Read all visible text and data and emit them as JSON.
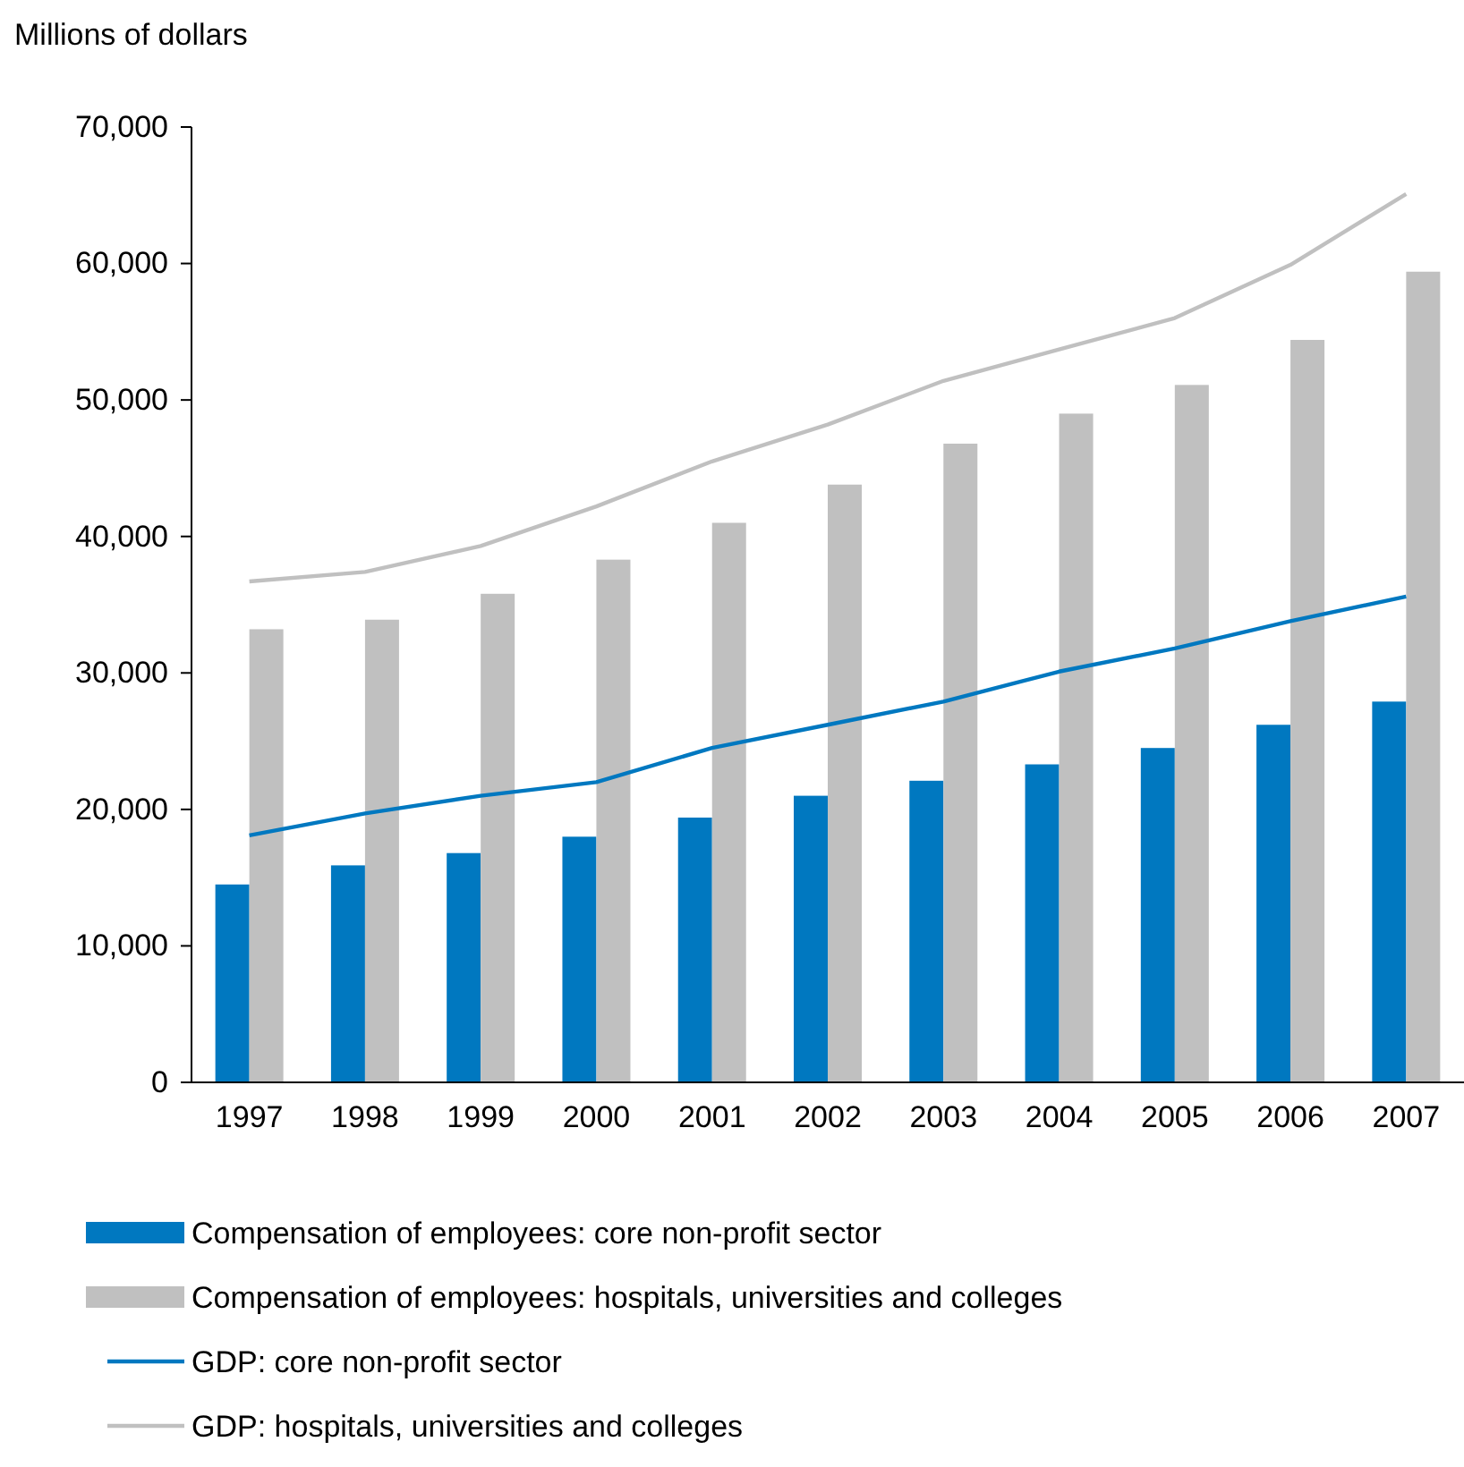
{
  "chart_data": {
    "type": "bar",
    "ylabel": "Millions of dollars",
    "categories": [
      "1997",
      "1998",
      "1999",
      "2000",
      "2001",
      "2002",
      "2003",
      "2004",
      "2005",
      "2006",
      "2007"
    ],
    "series": [
      {
        "name": "Compensation of employees: core non-profit sector",
        "color": "#0078c0",
        "values": [
          14500,
          15900,
          16800,
          18000,
          19400,
          21000,
          22100,
          23300,
          24500,
          26200,
          27900
        ]
      },
      {
        "name": "Compensation of employees: hospitals, universities and colleges",
        "color": "#c0c0c0",
        "values": [
          33200,
          33900,
          35800,
          38300,
          41000,
          43800,
          46800,
          49000,
          51100,
          54400,
          59400
        ]
      },
      {
        "name": "GDP: core non-profit sector",
        "type": "line",
        "color": "#0078c0",
        "values": [
          18100,
          19700,
          21000,
          22000,
          24500,
          26200,
          27900,
          30100,
          31800,
          33800,
          35600
        ]
      },
      {
        "name": "GDP: hospitals, universities and colleges",
        "type": "line",
        "color": "#c0c0c0",
        "values": [
          36700,
          37400,
          39300,
          42200,
          45500,
          48200,
          51400,
          53700,
          56000,
          59900,
          65100
        ]
      }
    ],
    "ylim": [
      0,
      70000
    ],
    "yticks": [
      {
        "value": 0,
        "label": "0"
      },
      {
        "value": 10000,
        "label": "10,000"
      },
      {
        "value": 20000,
        "label": "20,000"
      },
      {
        "value": 30000,
        "label": "30,000"
      },
      {
        "value": 40000,
        "label": "40,000"
      },
      {
        "value": 50000,
        "label": "50,000"
      },
      {
        "value": 60000,
        "label": "60,000"
      },
      {
        "value": 70000,
        "label": "70,000"
      }
    ],
    "grid": false,
    "legend": "bottom",
    "marker": "none",
    "line_style": "solid"
  }
}
